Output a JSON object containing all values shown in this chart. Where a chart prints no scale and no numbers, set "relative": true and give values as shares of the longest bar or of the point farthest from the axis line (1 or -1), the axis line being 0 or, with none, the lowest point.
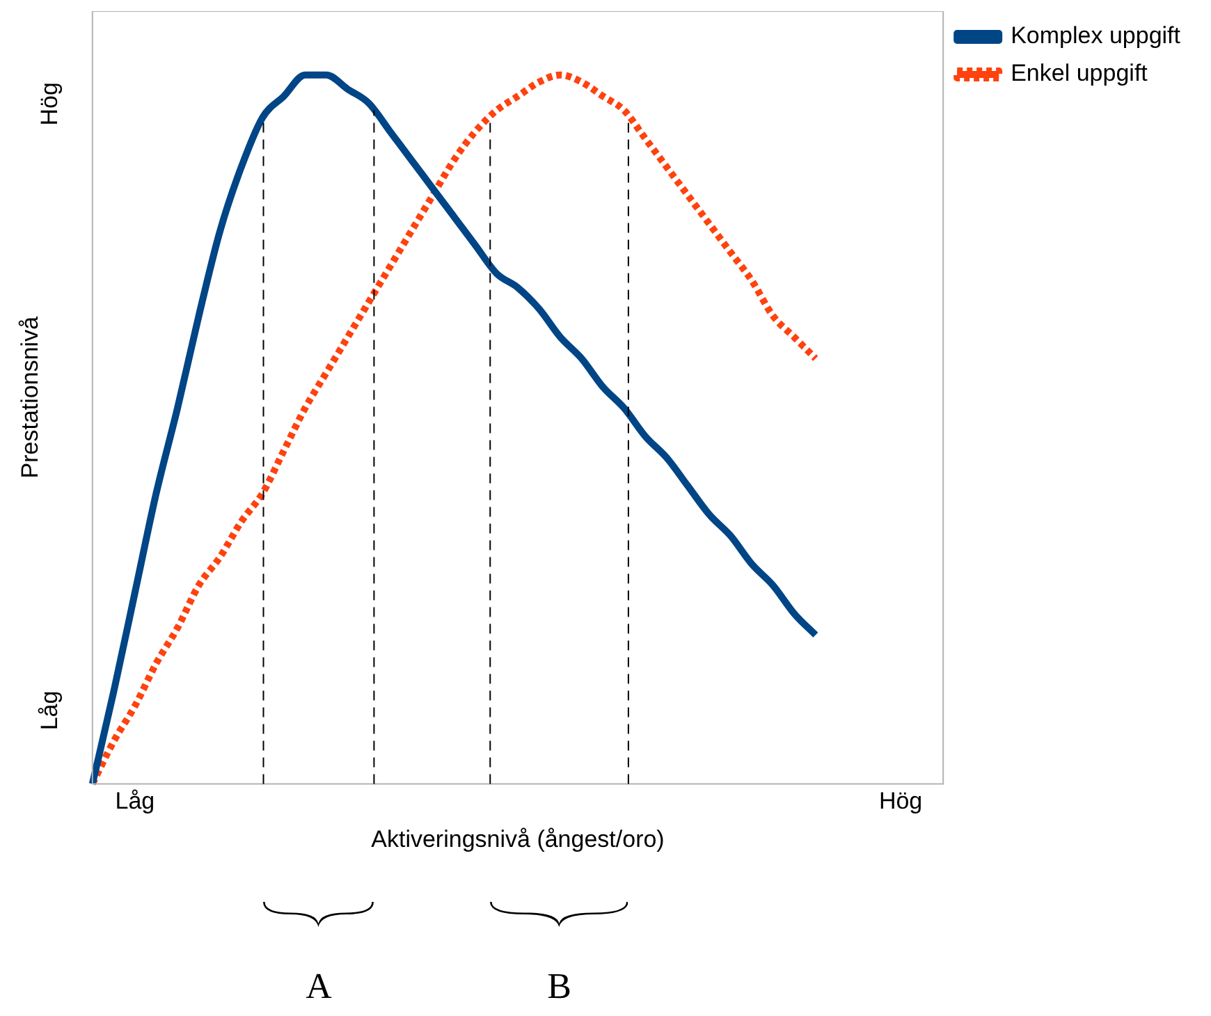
{
  "chart_data": {
    "type": "line",
    "relative": true,
    "xlabel": "Aktiveringsnivå (ångest/oro)",
    "ylabel": "Prestationsnivå",
    "categories": [
      null,
      null,
      "Låg",
      null,
      null,
      null,
      null,
      null,
      null,
      null,
      null,
      null,
      null,
      null,
      null,
      null,
      null,
      null,
      null,
      null,
      null,
      null,
      null,
      null,
      null,
      null,
      null,
      null,
      null,
      null,
      null,
      null,
      null,
      null,
      null,
      null,
      null,
      null,
      "Hög",
      null,
      null
    ],
    "legend": "top right",
    "marker": "none",
    "series": [
      {
        "name": "Komplex uppgift",
        "color": "#004586",
        "line_style": "solid",
        "values": [
          0,
          0.13,
          0.27,
          0.41,
          0.53,
          0.66,
          0.78,
          0.87,
          0.94,
          0.97,
          1.0,
          1.0,
          0.98,
          0.96,
          0.92,
          0.88,
          0.84,
          0.8,
          0.76,
          0.72,
          0.7,
          0.67,
          0.63,
          0.6,
          0.56,
          0.53,
          0.49,
          0.46,
          0.42,
          0.38,
          0.35,
          0.31,
          0.28,
          0.24,
          0.21,
          null,
          null,
          null,
          null,
          null,
          null
        ]
      },
      {
        "name": "Enkel uppgift",
        "color": "#ff420e",
        "line_style": "dotted",
        "values": [
          0,
          0.06,
          0.11,
          0.17,
          0.22,
          0.28,
          0.32,
          0.37,
          0.41,
          0.47,
          0.53,
          0.58,
          0.63,
          0.68,
          0.73,
          0.78,
          0.83,
          0.88,
          0.92,
          0.95,
          0.97,
          0.99,
          1.0,
          0.99,
          0.97,
          0.95,
          0.91,
          0.87,
          0.83,
          0.79,
          0.75,
          0.71,
          0.66,
          0.63,
          0.6,
          null,
          null,
          null,
          null,
          null,
          null
        ]
      }
    ],
    "annotations": [
      "Hög",
      "Låg",
      "A",
      "B"
    ]
  }
}
